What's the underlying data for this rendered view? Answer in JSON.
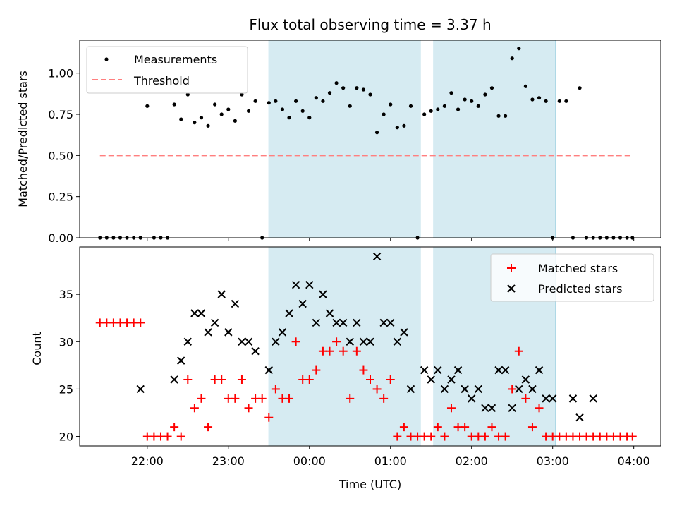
{
  "chart_data": [
    {
      "type": "scatter",
      "title": "Flux total observing time = 3.37 h",
      "xlabel": "",
      "ylabel": "Matched/Predicted stars",
      "ylim": [
        0,
        1.2
      ],
      "yticks": [
        "0.00",
        "0.25",
        "0.50",
        "0.75",
        "1.00"
      ],
      "xticks": [
        "22:00",
        "23:00",
        "00:00",
        "01:00",
        "02:00",
        "03:00",
        "04:00"
      ],
      "xlim": [
        "21:10",
        "04:20"
      ],
      "shaded_intervals": [
        [
          "23:30",
          "01:22"
        ],
        [
          "01:32",
          "03:02"
        ]
      ],
      "threshold": {
        "name": "Threshold",
        "value": 0.5,
        "x": [
          "21:25",
          "03:59"
        ],
        "color": "#ff7f7f"
      },
      "legend": {
        "position": "upper-left",
        "entries": [
          "Measurements",
          "Threshold"
        ]
      },
      "series": [
        {
          "name": "Measurements",
          "color": "#000000",
          "x": [
            "21:25",
            "21:30",
            "21:35",
            "21:40",
            "21:45",
            "21:50",
            "21:55",
            "22:00",
            "21:55",
            "22:05",
            "22:10",
            "22:15",
            "22:20",
            "22:25",
            "22:30",
            "22:35",
            "22:40",
            "22:45",
            "22:50",
            "22:55",
            "23:00",
            "23:05",
            "23:10",
            "23:15",
            "23:20",
            "23:25",
            "23:30",
            "23:35",
            "23:40",
            "23:45",
            "23:50",
            "23:55",
            "00:00",
            "00:05",
            "00:10",
            "00:15",
            "00:20",
            "00:25",
            "00:30",
            "00:35",
            "00:40",
            "00:45",
            "00:50",
            "00:55",
            "01:00",
            "01:05",
            "01:10",
            "01:15",
            "01:20",
            "01:25",
            "01:30",
            "01:35",
            "01:40",
            "01:45",
            "01:50",
            "01:55",
            "02:00",
            "02:05",
            "02:10",
            "02:15",
            "02:20",
            "02:25",
            "02:30",
            "02:35",
            "02:40",
            "02:45",
            "02:50",
            "02:55",
            "03:00",
            "03:05",
            "03:10",
            "03:15",
            "03:20",
            "03:25",
            "03:30",
            "03:35",
            "03:40",
            "03:45",
            "03:50",
            "03:55",
            "03:59"
          ],
          "y": [
            0,
            0,
            0,
            0,
            0,
            0,
            0,
            0.8,
            0,
            0,
            0,
            0,
            0.81,
            0.72,
            0.87,
            0.7,
            0.73,
            0.68,
            0.81,
            0.75,
            0.78,
            0.71,
            0.87,
            0.77,
            0.83,
            0,
            0.82,
            0.83,
            0.78,
            0.73,
            0.83,
            0.77,
            0.73,
            0.85,
            0.83,
            0.88,
            0.94,
            0.91,
            0.8,
            0.91,
            0.9,
            0.87,
            0.64,
            0.75,
            0.81,
            0.67,
            0.68,
            0.8,
            0,
            0.75,
            0.77,
            0.78,
            0.8,
            0.88,
            0.78,
            0.84,
            0.83,
            0.8,
            0.87,
            0.91,
            0.74,
            0.74,
            1.09,
            1.15,
            0.92,
            0.84,
            0.85,
            0.83,
            0,
            0.83,
            0.83,
            0,
            0.91,
            0,
            0,
            0,
            0,
            0,
            0,
            0,
            0
          ]
        }
      ]
    },
    {
      "type": "scatter",
      "title": "",
      "xlabel": "Time (UTC)",
      "ylabel": "Count",
      "ylim": [
        19,
        40
      ],
      "yticks": [
        "20",
        "25",
        "30",
        "35"
      ],
      "xticks": [
        "22:00",
        "23:00",
        "00:00",
        "01:00",
        "02:00",
        "03:00",
        "04:00"
      ],
      "xlim": [
        "21:10",
        "04:20"
      ],
      "shaded_intervals": [
        [
          "23:30",
          "01:22"
        ],
        [
          "01:32",
          "03:02"
        ]
      ],
      "legend": {
        "position": "upper-right",
        "entries": [
          "Matched stars",
          "Predicted stars"
        ]
      },
      "series": [
        {
          "name": "Matched stars",
          "color": "#ff0000",
          "marker": "+",
          "x": [
            "21:25",
            "21:30",
            "21:35",
            "21:40",
            "21:45",
            "21:50",
            "21:55",
            "22:00",
            "22:05",
            "22:10",
            "22:15",
            "22:20",
            "22:25",
            "22:30",
            "22:35",
            "22:40",
            "22:45",
            "22:50",
            "22:55",
            "23:00",
            "23:05",
            "23:10",
            "23:15",
            "23:20",
            "23:25",
            "23:30",
            "23:35",
            "23:40",
            "23:45",
            "23:50",
            "23:55",
            "00:00",
            "00:05",
            "00:10",
            "00:15",
            "00:20",
            "00:25",
            "00:30",
            "00:35",
            "00:40",
            "00:45",
            "00:50",
            "00:55",
            "01:00",
            "01:05",
            "01:10",
            "01:15",
            "01:20",
            "01:25",
            "01:30",
            "01:35",
            "01:40",
            "01:45",
            "01:50",
            "01:55",
            "02:00",
            "02:05",
            "02:10",
            "02:15",
            "02:20",
            "02:25",
            "02:30",
            "02:35",
            "02:40",
            "02:45",
            "02:50",
            "02:55",
            "03:00",
            "03:05",
            "03:10",
            "03:15",
            "03:20",
            "03:25",
            "03:30",
            "03:35",
            "03:40",
            "03:45",
            "03:50",
            "03:55",
            "03:59"
          ],
          "y": [
            32,
            32,
            32,
            32,
            32,
            32,
            32,
            20,
            20,
            20,
            20,
            21,
            20,
            26,
            23,
            24,
            21,
            26,
            26,
            24,
            24,
            26,
            23,
            24,
            24,
            22,
            25,
            24,
            24,
            30,
            26,
            26,
            27,
            29,
            29,
            30,
            29,
            24,
            29,
            27,
            26,
            25,
            24,
            26,
            20,
            21,
            20,
            20,
            20,
            20,
            21,
            20,
            23,
            21,
            21,
            20,
            20,
            20,
            21,
            20,
            20,
            25,
            29,
            24,
            21,
            23,
            20,
            20,
            20,
            20,
            20,
            20,
            20,
            20,
            20,
            20,
            20,
            20,
            20,
            20
          ]
        },
        {
          "name": "Predicted stars",
          "color": "#000000",
          "marker": "x",
          "x": [
            "21:55",
            "22:20",
            "22:25",
            "22:30",
            "22:35",
            "22:40",
            "22:45",
            "22:50",
            "22:55",
            "23:00",
            "23:05",
            "23:10",
            "23:15",
            "23:20",
            "23:30",
            "23:35",
            "23:40",
            "23:45",
            "23:50",
            "23:55",
            "00:00",
            "00:05",
            "00:10",
            "00:15",
            "00:20",
            "00:25",
            "00:30",
            "00:35",
            "00:40",
            "00:45",
            "00:50",
            "00:55",
            "01:00",
            "01:05",
            "01:10",
            "01:15",
            "01:25",
            "01:30",
            "01:35",
            "01:40",
            "01:45",
            "01:50",
            "01:55",
            "02:00",
            "02:05",
            "02:10",
            "02:15",
            "02:20",
            "02:25",
            "02:30",
            "02:35",
            "02:40",
            "02:45",
            "02:50",
            "02:55",
            "03:00",
            "03:15",
            "03:20",
            "03:30"
          ],
          "y": [
            25,
            26,
            28,
            30,
            33,
            33,
            31,
            32,
            35,
            31,
            34,
            30,
            30,
            29,
            27,
            30,
            31,
            33,
            36,
            34,
            36,
            32,
            35,
            33,
            32,
            32,
            30,
            32,
            30,
            30,
            39,
            32,
            32,
            30,
            31,
            25,
            27,
            26,
            27,
            25,
            26,
            27,
            25,
            24,
            25,
            23,
            23,
            27,
            27,
            23,
            25,
            26,
            25,
            27,
            24,
            24,
            24,
            22,
            24
          ]
        }
      ]
    }
  ]
}
